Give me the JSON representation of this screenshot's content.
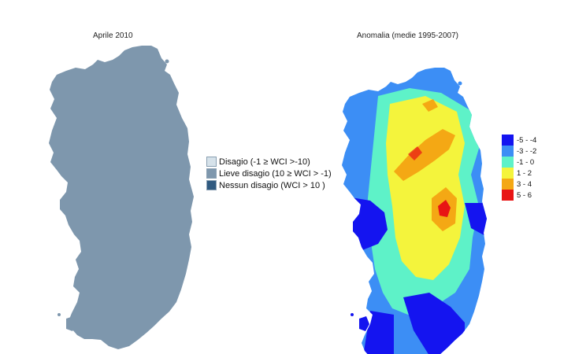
{
  "left_map": {
    "title": "Aprile 2010",
    "fill_color": "#7e97ad",
    "legend": [
      {
        "label": "Disagio (-1 ≥ WCI >-10)",
        "color": "#d6e2ea"
      },
      {
        "label": "Lieve disagio (10 ≥ WCI > -1)",
        "color": "#7e97ad"
      },
      {
        "label": "Nessun disagio (WCI > 10 )",
        "color": "#305a80"
      }
    ]
  },
  "right_map": {
    "title": "Anomalia (medie 1995-2007)",
    "legend": [
      {
        "label": "-5 - -4",
        "color": "#1414f0"
      },
      {
        "label": "-3 - -2",
        "color": "#3c8ef5"
      },
      {
        "label": "-1 - 0",
        "color": "#5ef2c8"
      },
      {
        "label": "1 - 2",
        "color": "#f4f43c"
      },
      {
        "label": "3 - 4",
        "color": "#f4a814"
      },
      {
        "label": "5 - 6",
        "color": "#e81414"
      }
    ]
  }
}
